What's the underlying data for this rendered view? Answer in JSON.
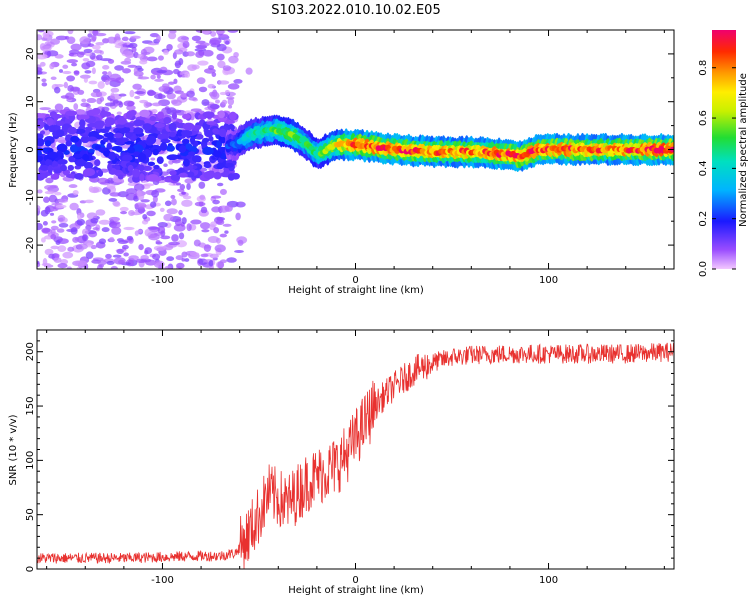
{
  "title": "S103.2022.010.10.02.E05",
  "spectrogram": {
    "xlabel": "Height of straight line (km)",
    "ylabel": "Frequency (Hz)",
    "xlim": [
      -165,
      165
    ],
    "ylim": [
      -25,
      25
    ],
    "xticks": [
      -100,
      0,
      100
    ],
    "yticks": [
      -20,
      -10,
      0,
      10,
      20
    ],
    "colorbar": {
      "label": "Normalized spectral amplitude",
      "ticks": [
        "0.0",
        "0.2",
        "0.4",
        "0.6",
        "0.8"
      ],
      "range": [
        0,
        0.95
      ]
    }
  },
  "chart_data": [
    {
      "type": "heatmap",
      "xlabel": "Height of straight line (km)",
      "ylabel": "Frequency (Hz)",
      "xlim": [
        -165,
        165
      ],
      "ylim": [
        -25,
        25
      ],
      "ridge": {
        "x": [
          -165,
          -140,
          -120,
          -100,
          -80,
          -62,
          -55,
          -45,
          -40,
          -32,
          -25,
          -20,
          -15,
          -10,
          -5,
          0,
          10,
          20,
          40,
          60,
          80,
          85,
          95,
          110,
          130,
          150,
          165
        ],
        "freq": [
          1,
          1,
          1,
          0.5,
          0.5,
          1,
          3,
          4,
          4,
          3,
          1,
          -1,
          0,
          1,
          1,
          1,
          0.5,
          0,
          -0.5,
          -0.5,
          -1,
          -1.5,
          0,
          0,
          0,
          0,
          0
        ],
        "amplitude": [
          0.15,
          0.15,
          0.15,
          0.15,
          0.15,
          0.25,
          0.45,
          0.5,
          0.55,
          0.6,
          0.5,
          0.5,
          0.6,
          0.7,
          0.85,
          0.9,
          0.9,
          0.9,
          0.85,
          0.85,
          0.9,
          0.9,
          0.9,
          0.9,
          0.85,
          0.9,
          0.95
        ]
      }
    },
    {
      "type": "line",
      "xlabel": "Height of straight line (km)",
      "ylabel": "SNR (10 * v/v)",
      "xlim": [
        -165,
        165
      ],
      "ylim": [
        0,
        220
      ],
      "xticks": [
        -100,
        0,
        100
      ],
      "yticks": [
        0,
        50,
        100,
        150,
        200
      ],
      "color": "#e8312f",
      "x": [
        -165,
        -140,
        -120,
        -100,
        -80,
        -70,
        -62,
        -56,
        -50,
        -45,
        -40,
        -35,
        -30,
        -25,
        -20,
        -15,
        -10,
        -5,
        0,
        5,
        10,
        15,
        20,
        25,
        30,
        40,
        50,
        60,
        80,
        100,
        120,
        140,
        165
      ],
      "y": [
        10,
        10,
        10,
        11,
        12,
        12,
        15,
        30,
        50,
        70,
        65,
        60,
        70,
        80,
        85,
        90,
        95,
        105,
        120,
        135,
        150,
        160,
        168,
        175,
        182,
        190,
        195,
        197,
        198,
        198,
        198,
        198,
        200
      ]
    }
  ]
}
